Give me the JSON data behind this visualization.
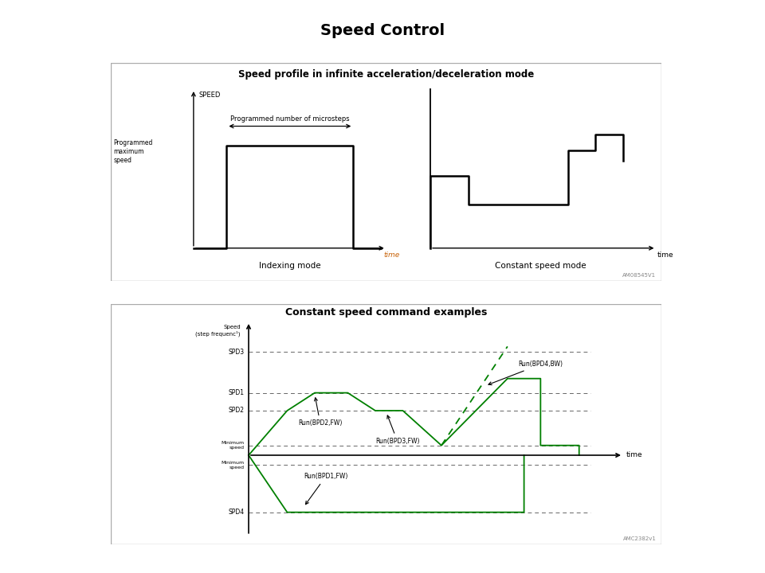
{
  "title": "Speed Control",
  "top_diagram": {
    "title": "Speed profile in infinite acceleration/deceleration mode",
    "watermark": "AM08545V1"
  },
  "bottom_diagram": {
    "title": "Constant speed command examples",
    "watermark": "AMC2382v1"
  },
  "bg_color": "#ffffff",
  "green_color": "#008000"
}
